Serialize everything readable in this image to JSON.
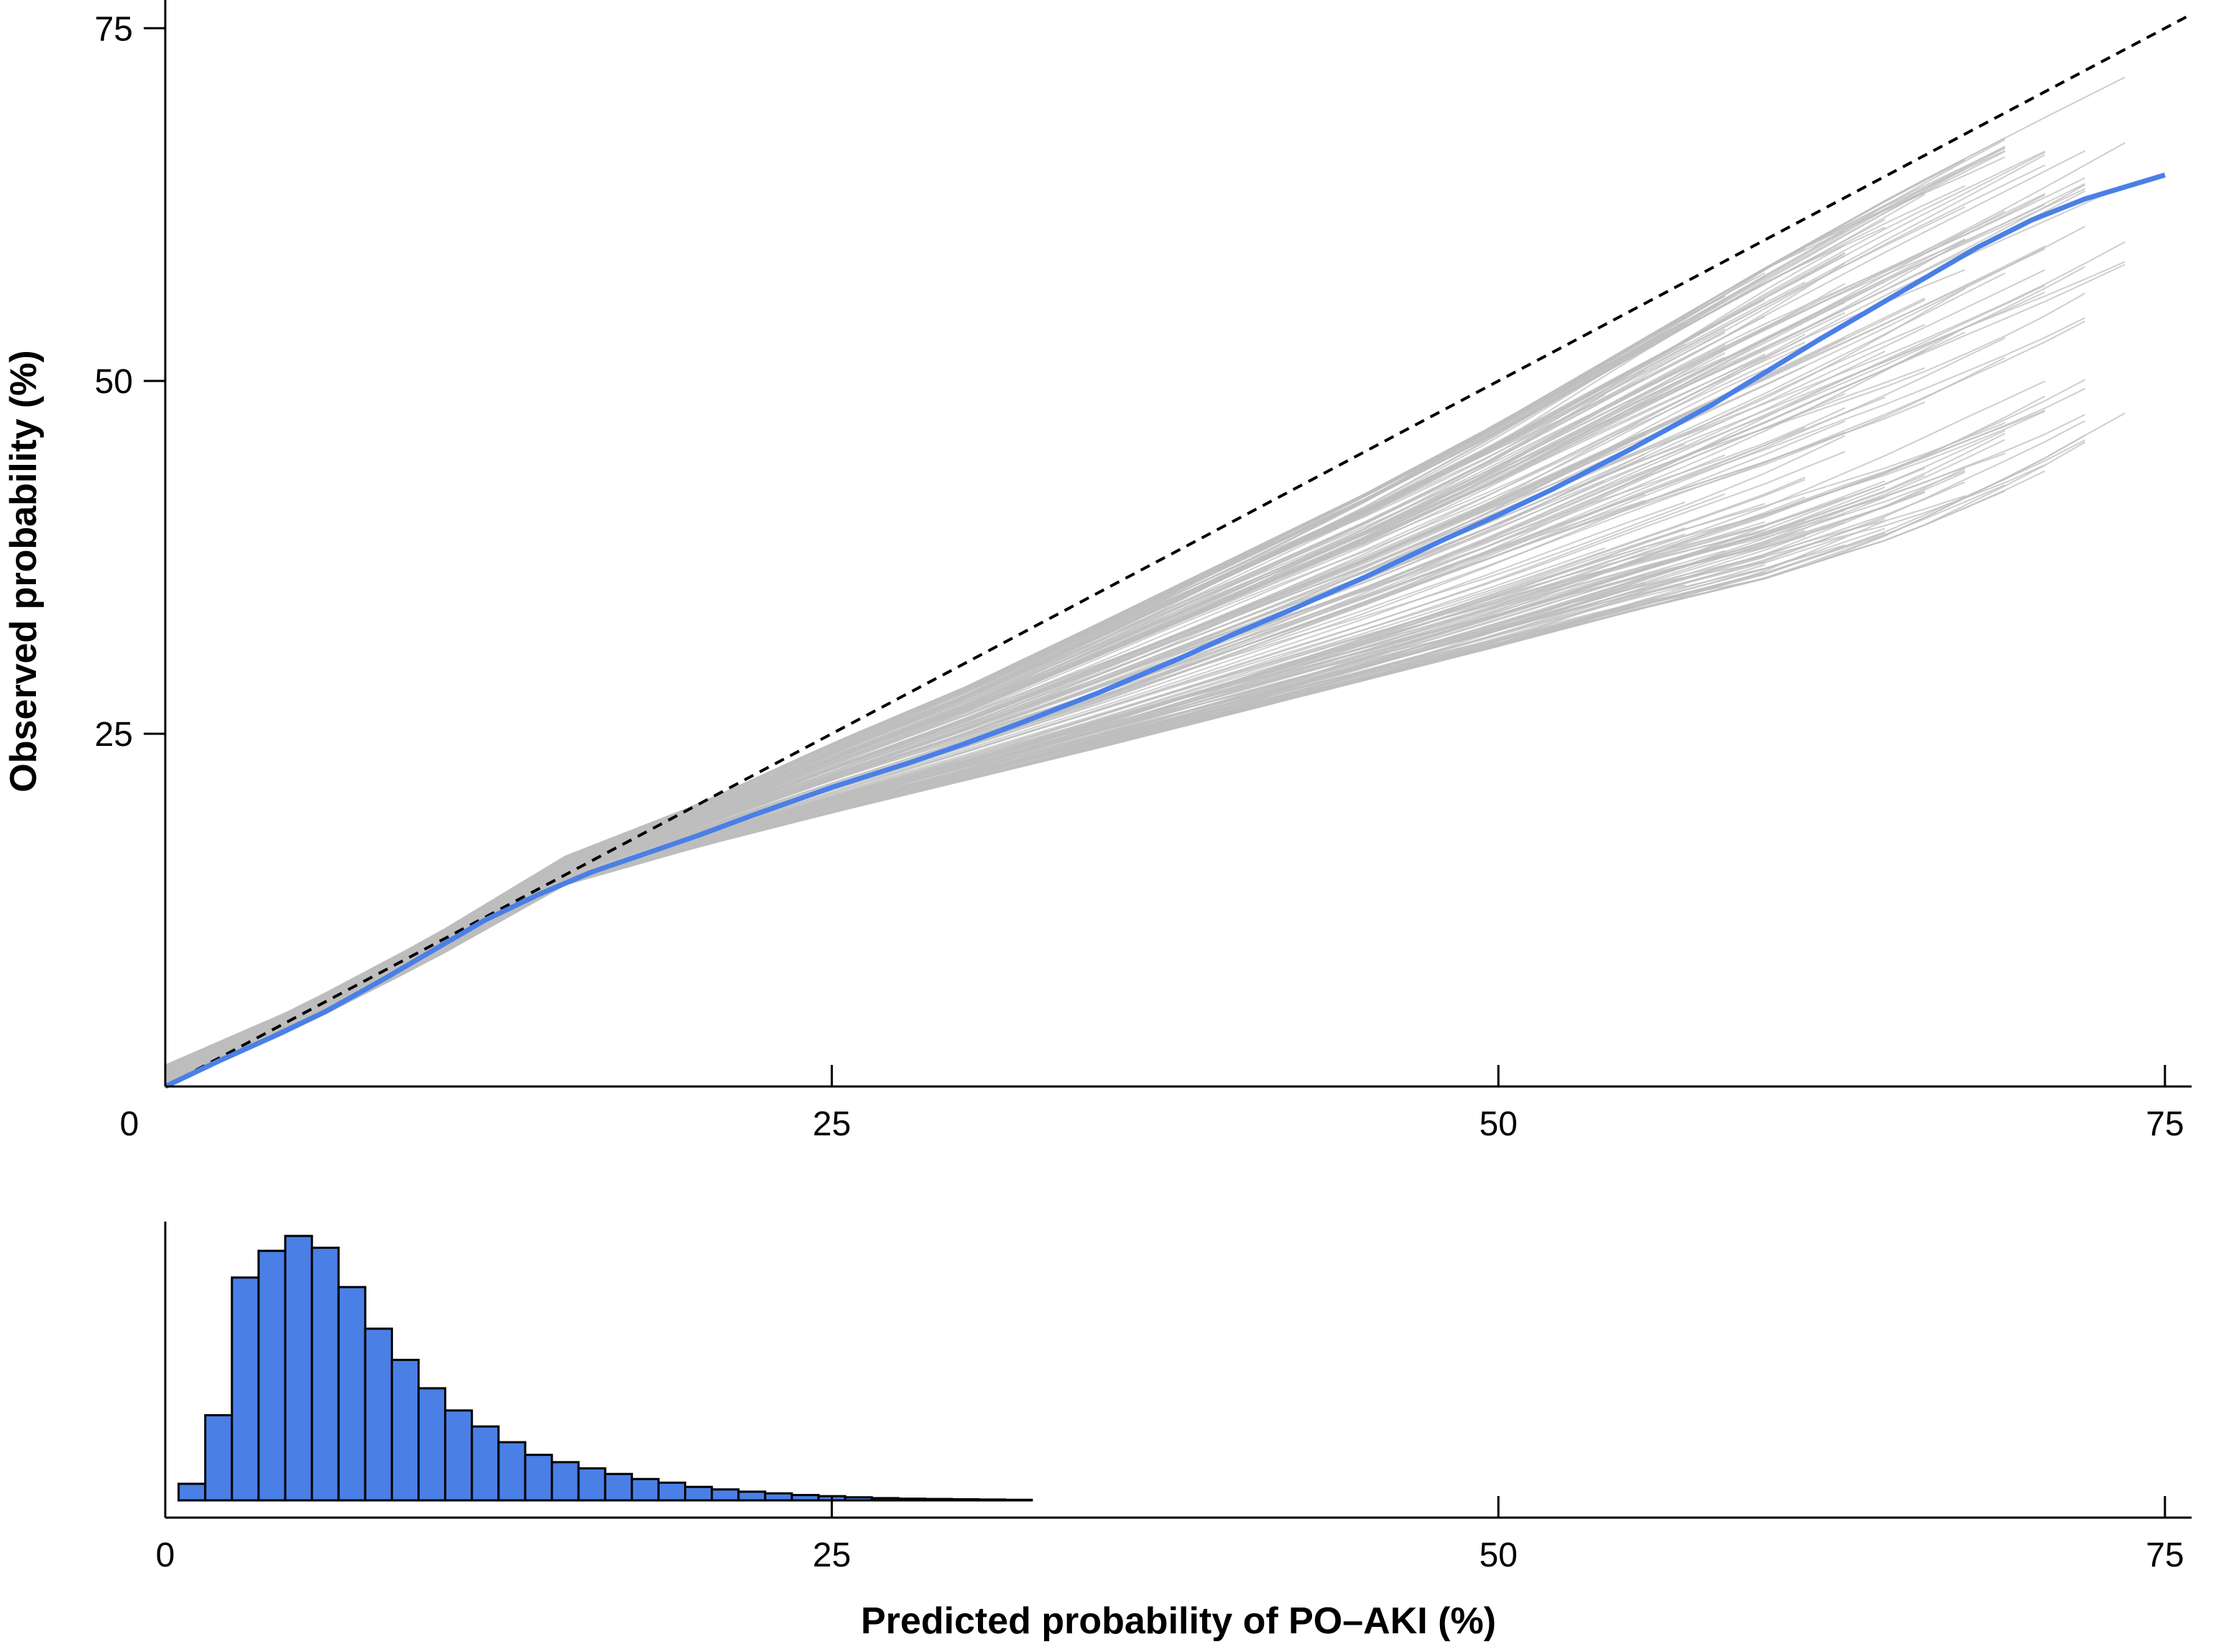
{
  "colors": {
    "smooth_curve": "#4a7fe6",
    "bootstrap_curves": "#bdbdbd",
    "reference_line": "#000000",
    "histogram_bars": "#4a7fe6",
    "histogram_edge": "#000000"
  },
  "chart_data": [
    {
      "type": "line",
      "title": "",
      "xlabel": "",
      "ylabel": "Observed probability (%)",
      "xlim": [
        0,
        76
      ],
      "ylim": [
        0,
        77
      ],
      "xticks": [
        0,
        25,
        50,
        75
      ],
      "xtick_labels": [
        "0",
        "25",
        "50",
        "75"
      ],
      "yticks": [
        25,
        50,
        75
      ],
      "ytick_labels": [
        "25",
        "50",
        "75"
      ],
      "grid": false,
      "legend": "none",
      "reference_line": {
        "style": "dashed",
        "x": [
          0,
          76
        ],
        "y": [
          0,
          76
        ]
      },
      "series": [
        {
          "style": "smooth",
          "x": [
            0,
            2,
            4,
            6,
            8,
            10,
            12,
            14,
            16,
            18,
            20,
            22,
            25,
            28,
            30,
            32,
            35,
            38,
            40,
            42,
            45,
            48,
            50,
            52,
            55,
            58,
            60,
            62,
            65,
            68,
            70,
            72,
            75
          ],
          "y": [
            0,
            1.8,
            3.5,
            5.3,
            7.4,
            9.6,
            11.8,
            13.6,
            15.2,
            16.5,
            17.8,
            19.2,
            21.2,
            23.0,
            24.3,
            25.7,
            27.9,
            30.3,
            32.0,
            33.6,
            36.1,
            38.8,
            40.5,
            42.3,
            45.2,
            48.3,
            50.6,
            52.9,
            56.2,
            59.5,
            61.4,
            62.9,
            64.6
          ]
        }
      ],
      "bootstrap_band": {
        "style": "many thin grey resampled calibration curves",
        "x": [
          0,
          5,
          10,
          15,
          20,
          25,
          30,
          35,
          40,
          45,
          50,
          55,
          60,
          65,
          70,
          74
        ],
        "y_low": [
          0,
          4.2,
          9.0,
          14.3,
          17.0,
          19.4,
          21.7,
          24.0,
          26.4,
          28.8,
          31.2,
          33.7,
          36.0,
          39.0,
          43.0,
          47.0
        ],
        "y_high": [
          1.5,
          5.6,
          10.6,
          16.3,
          20.0,
          24.3,
          28.3,
          32.8,
          37.4,
          42.0,
          47.0,
          52.5,
          58.0,
          63.3,
          68.2,
          72.0
        ]
      }
    },
    {
      "type": "bar",
      "title": "",
      "xlabel": "Predicted probability of PO–AKI (%)",
      "ylabel": "",
      "xlim": [
        0,
        76
      ],
      "xticks": [
        0,
        25,
        50,
        75
      ],
      "xtick_labels": [
        "0",
        "25",
        "50",
        "75"
      ],
      "grid": false,
      "legend": "none",
      "bin_width": 1,
      "bin_starts": [
        0.5,
        1.5,
        2.5,
        3.5,
        4.5,
        5.5,
        6.5,
        7.5,
        8.5,
        9.5,
        10.5,
        11.5,
        12.5,
        13.5,
        14.5,
        15.5,
        16.5,
        17.5,
        18.5,
        19.5,
        20.5,
        21.5,
        22.5,
        23.5,
        24.5,
        25.5,
        26.5,
        27.5,
        28.5,
        29.5,
        30.5,
        31.5
      ],
      "values": [
        5.9,
        30.3,
        79.3,
        88.8,
        94.1,
        89.9,
        75.9,
        61.1,
        50.0,
        39.9,
        32.0,
        26.3,
        20.7,
        16.2,
        13.6,
        11.4,
        9.4,
        7.6,
        6.3,
        4.8,
        3.9,
        3.1,
        2.5,
        1.9,
        1.5,
        1.1,
        0.8,
        0.6,
        0.5,
        0.4,
        0.3,
        0.2
      ]
    }
  ]
}
